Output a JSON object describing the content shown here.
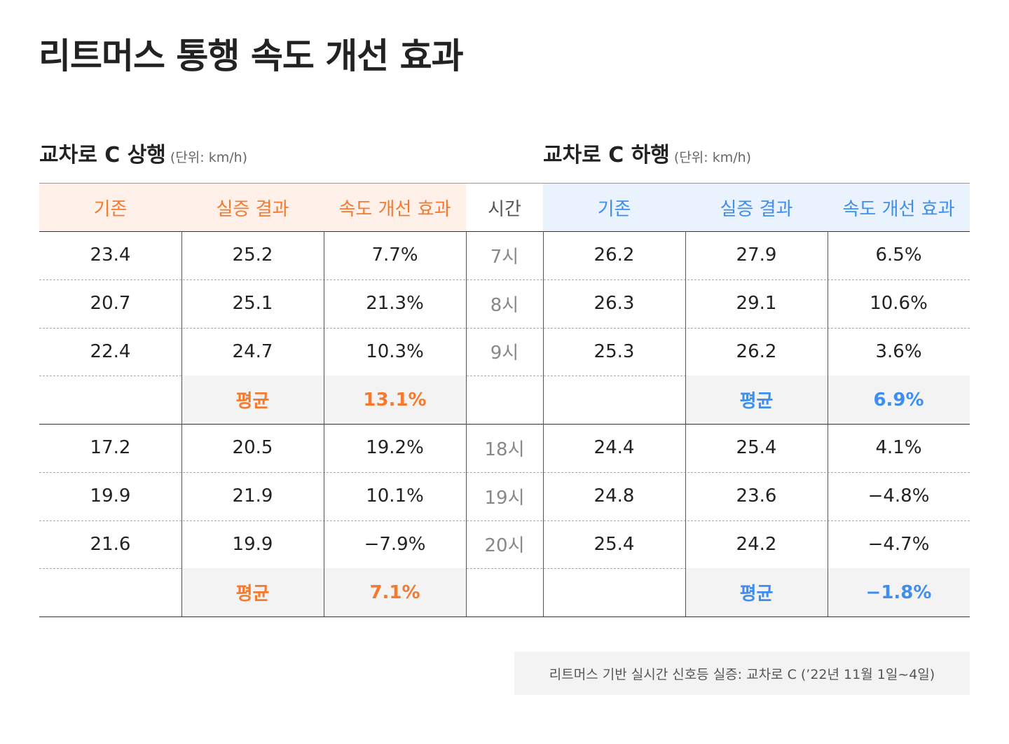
{
  "title": "리트머스 통행 속도 개선 효과",
  "left": {
    "title": "교차로 C 상행",
    "unit": "(단위: km/h)"
  },
  "right": {
    "title": "교차로 C 하행",
    "unit": "(단위: km/h)"
  },
  "table": {
    "header": [
      "기존",
      "실증 결과",
      "속도 개선 효과",
      "시간",
      "기존",
      "실증 결과",
      "속도 개선 효과"
    ],
    "groups": [
      {
        "rows": [
          [
            "23.4",
            "25.2",
            "7.7%",
            "7시",
            "26.2",
            "27.9",
            "6.5%"
          ],
          [
            "20.7",
            "25.1",
            "21.3%",
            "8시",
            "26.3",
            "29.1",
            "10.6%"
          ],
          [
            "22.4",
            "24.7",
            "10.3%",
            "9시",
            "25.3",
            "26.2",
            "3.6%"
          ]
        ],
        "average": {
          "left_label": "평균",
          "left": "13.1%",
          "right_label": "평균",
          "right": "6.9%"
        }
      },
      {
        "rows": [
          [
            "17.2",
            "20.5",
            "19.2%",
            "18시",
            "24.4",
            "25.4",
            "4.1%"
          ],
          [
            "19.9",
            "21.9",
            "10.1%",
            "19시",
            "24.8",
            "23.6",
            "−4.8%"
          ],
          [
            "21.6",
            "19.9",
            "−7.9%",
            "20시",
            "25.4",
            "24.2",
            "−4.7%"
          ]
        ],
        "average": {
          "left_label": "평균",
          "left": "7.1%",
          "right_label": "평균",
          "right": "−1.8%"
        }
      }
    ]
  },
  "footnote": "리트머스 기반 실시간 신호등 실증: 교차로 C (’22년 11월 1일~4일)"
}
